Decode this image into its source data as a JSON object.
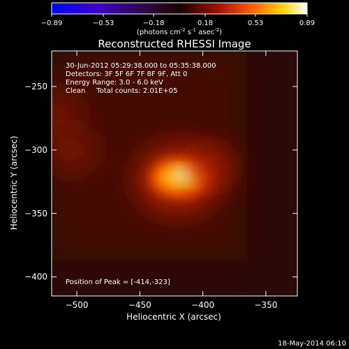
{
  "chart_data": {
    "type": "heatmap",
    "title": "Reconstructed RHESSI Image",
    "xlabel": "Heliocentric X (arcsec)",
    "ylabel": "Heliocentric Y (arcsec)",
    "xlim": [
      -520,
      -325
    ],
    "ylim": [
      -415,
      -222
    ],
    "xticks": [
      -500,
      -450,
      -400,
      -350
    ],
    "yticks": [
      -250,
      -300,
      -350,
      -400
    ],
    "colorbar": {
      "ticks": [
        "-0.89",
        "-0.53",
        "-0.18",
        "0.18",
        "0.53",
        "0.89"
      ],
      "range": [
        -0.89,
        0.89
      ],
      "label_main": "(photons cm",
      "label_exp1": "-2",
      "label_mid1": " s",
      "label_exp2": "-1",
      "label_mid2": " asec",
      "label_exp3": "-2",
      "label_end": ")"
    },
    "annotations": [
      "30-Jun-2012 05:29:38.000 to 05:35:38.000",
      "Detectors: 3F 5F 6F 7F 8F 9F, Att 0",
      "Energy Range: 3.0 - 6.0 keV",
      "Clean     Total counts: 2.01E+05"
    ],
    "peak_label": "Position of Peak = [-414,-323]",
    "peak": {
      "x": -414,
      "y": -323,
      "value": 0.89
    },
    "sources": [
      {
        "x": -420,
        "y": -323,
        "value": 0.89
      },
      {
        "x": -395,
        "y": -313,
        "value": 0.6
      },
      {
        "x": -518,
        "y": -272,
        "value": 0.3
      },
      {
        "x": -505,
        "y": -300,
        "value": 0.18
      }
    ]
  },
  "footer": {
    "timestamp": "18-May-2014 06:10"
  }
}
